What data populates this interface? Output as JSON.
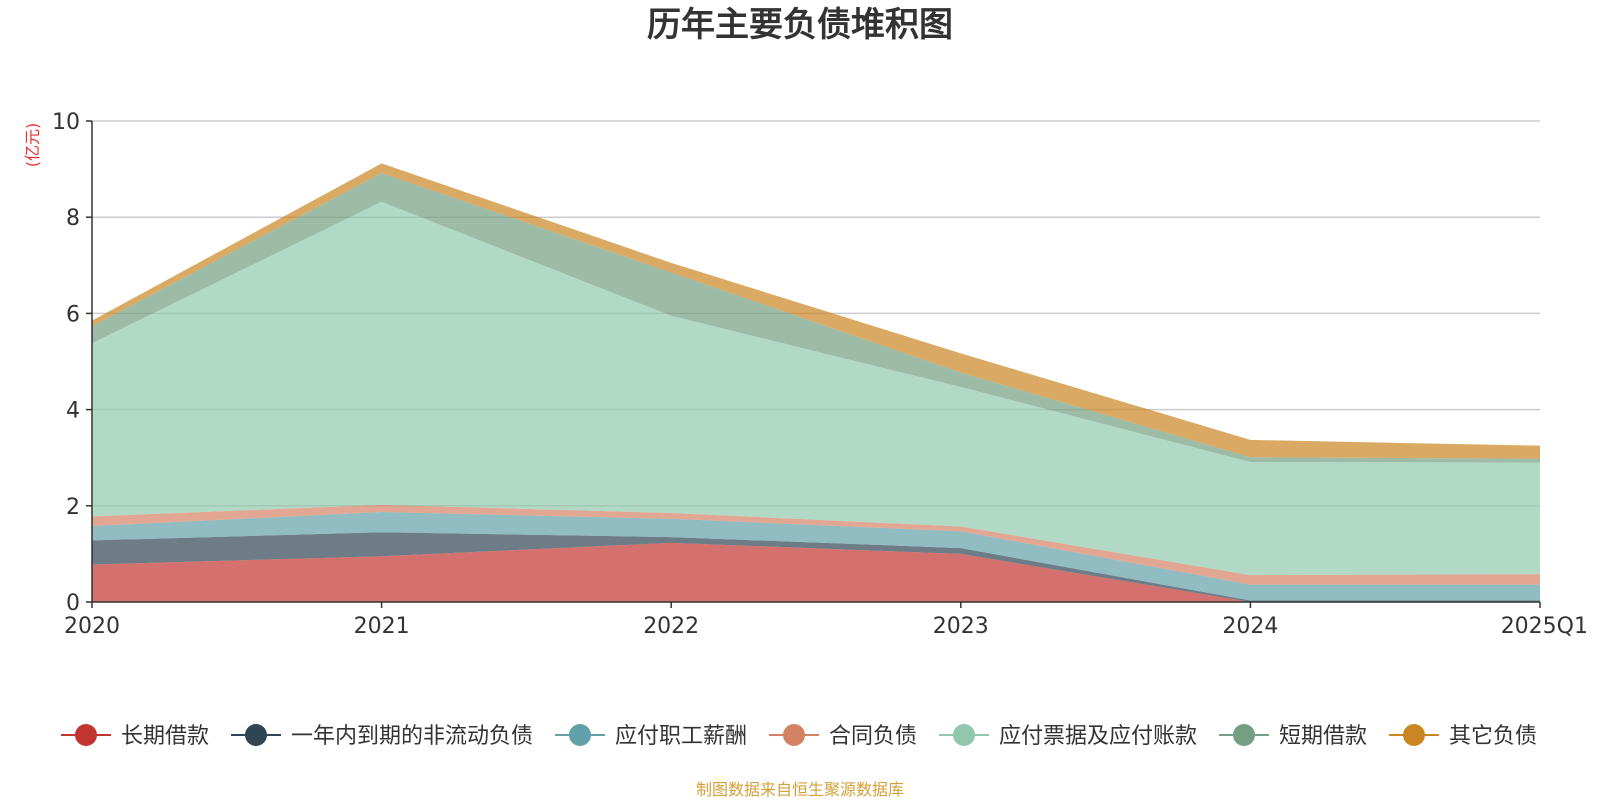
{
  "chart_data": {
    "type": "area",
    "stacked": true,
    "title": "历年主要负债堆积图",
    "ylabel": "(亿元)",
    "xlabel": "",
    "ylim": [
      0,
      10
    ],
    "yticks": [
      0,
      2,
      4,
      6,
      8,
      10
    ],
    "grid": true,
    "legend_position": "bottom",
    "categories": [
      "2020",
      "2021",
      "2022",
      "2023",
      "2024",
      "2025Q1"
    ],
    "series": [
      {
        "name": "长期借款",
        "color": "#c23531",
        "values": [
          0.78,
          0.95,
          1.23,
          1.0,
          0.0,
          0.0
        ]
      },
      {
        "name": "一年内到期的非流动负债",
        "color": "#2f4554",
        "values": [
          0.5,
          0.5,
          0.12,
          0.12,
          0.03,
          0.03
        ]
      },
      {
        "name": "应付职工薪酬",
        "color": "#61a0a8",
        "values": [
          0.3,
          0.42,
          0.38,
          0.35,
          0.33,
          0.33
        ]
      },
      {
        "name": "合同负债",
        "color": "#d48265",
        "values": [
          0.2,
          0.15,
          0.12,
          0.1,
          0.2,
          0.22
        ]
      },
      {
        "name": "应付票据及应付账款",
        "color": "#91c7ae",
        "values": [
          3.6,
          6.3,
          4.1,
          2.9,
          2.35,
          2.32
        ]
      },
      {
        "name": "短期借款",
        "color": "#749f83",
        "values": [
          0.35,
          0.6,
          0.9,
          0.3,
          0.1,
          0.08
        ]
      },
      {
        "name": "其它负债",
        "color": "#ca8622",
        "values": [
          0.12,
          0.2,
          0.2,
          0.4,
          0.36,
          0.27
        ]
      }
    ],
    "source": "制图数据来自恒生聚源数据库",
    "unit_color": "#e8322f",
    "source_color": "#d4a03a"
  }
}
